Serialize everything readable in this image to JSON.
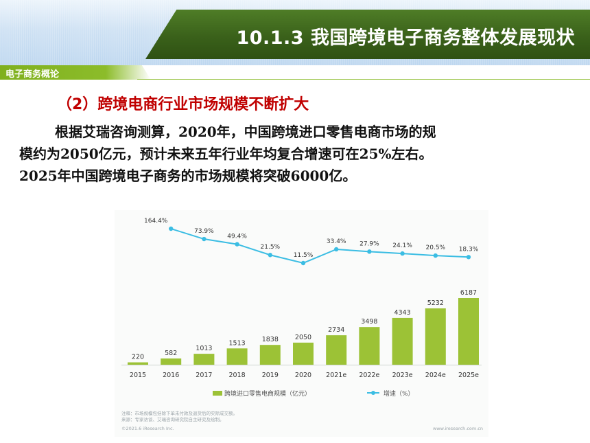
{
  "header": {
    "title": "10.1.3 我国跨境电子商务整体发展现状",
    "subtitle": "电子商务概论"
  },
  "content": {
    "heading": "（2）跨境电商行业市场规模不断扩大",
    "para_lines": [
      "根据艾瑞咨询测算，2020年，中国跨境进口零售电商市场的规",
      "模约为2050亿元，预计未来五年行业年均复合增速可在25%左右。",
      "2025年中国跨境电子商务的市场规模将突破6000亿。"
    ]
  },
  "colors": {
    "bar": "#9cc236",
    "line": "#3bbde3",
    "heading": "#c00000",
    "banner": "#3a611a"
  },
  "chart_data": {
    "type": "bar",
    "categories": [
      "2015",
      "2016",
      "2017",
      "2018",
      "2019",
      "2020",
      "2021e",
      "2022e",
      "2023e",
      "2024e",
      "2025e"
    ],
    "series": [
      {
        "name": "跨境进口零售电商规模（亿元）",
        "type": "bar",
        "values": [
          220,
          582,
          1013,
          1513,
          1838,
          2050,
          2734,
          3498,
          4343,
          5232,
          6187
        ]
      },
      {
        "name": "增速（%）",
        "type": "line",
        "values": [
          null,
          164.4,
          73.9,
          49.4,
          21.5,
          11.5,
          33.4,
          27.9,
          24.1,
          20.5,
          18.3
        ],
        "labels": [
          "",
          "164.4%",
          "73.9%",
          "49.4%",
          "21.5%",
          "11.5%",
          "33.4%",
          "27.9%",
          "24.1%",
          "20.5%",
          "18.3%"
        ]
      }
    ],
    "legend_position": "bottom",
    "notes": [
      "注释：市场规模包括除下单未付款及退货后的实际成交额。",
      "来源：专家访谈、艾瑞咨询研究院自主研究及绘制。"
    ],
    "footer_left": "©2021.6 iResearch Inc.",
    "footer_right": "www.iresearch.com.cn"
  }
}
